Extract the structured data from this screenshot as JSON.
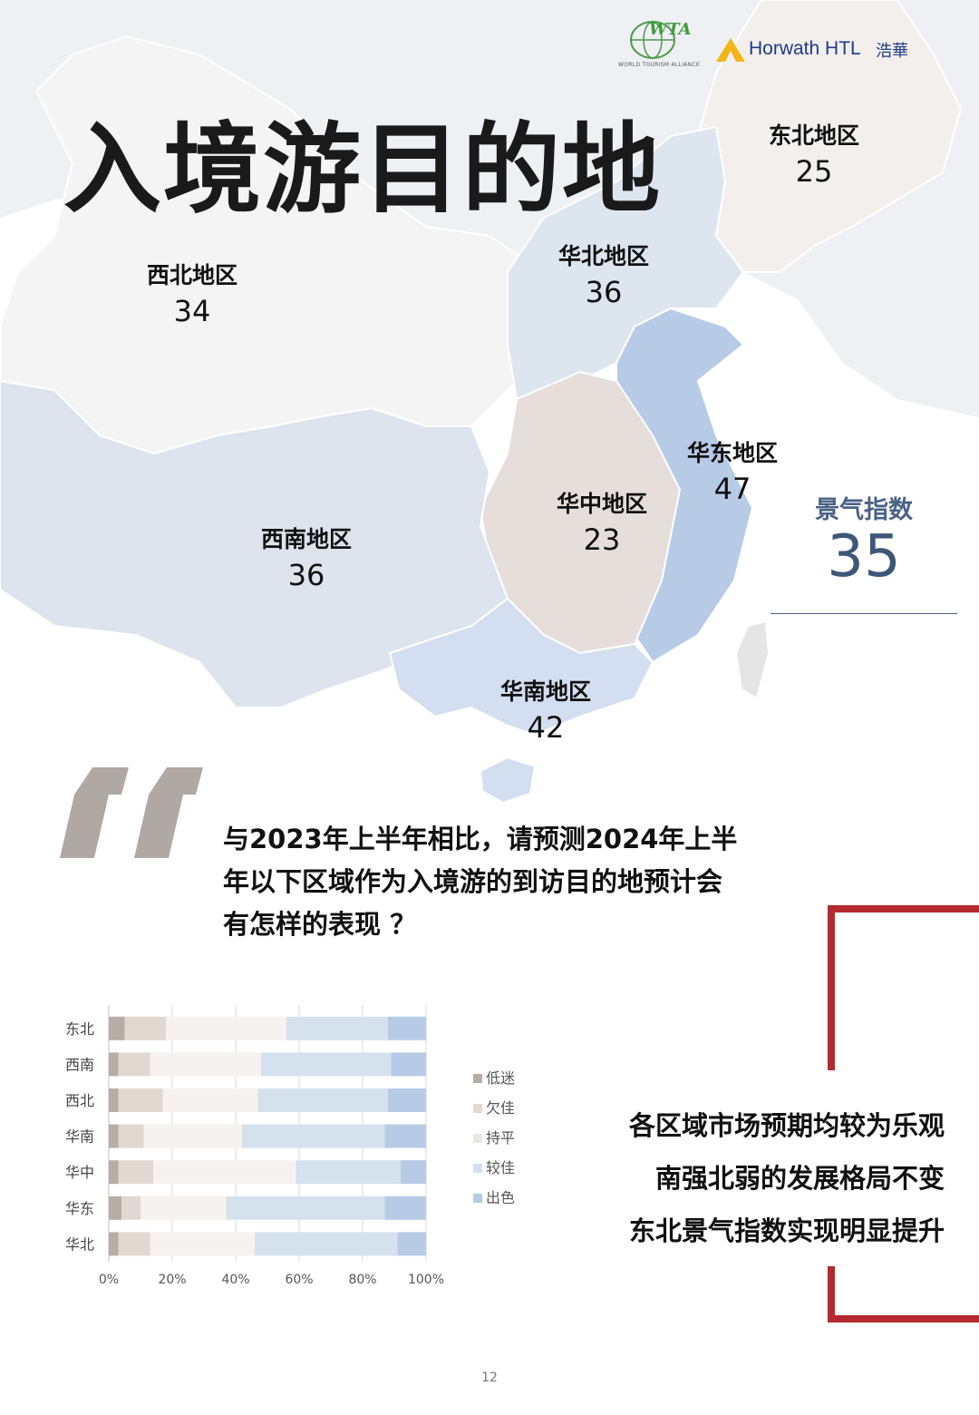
{
  "header": {
    "title": "入境游目的地",
    "logo_wta": "WTA",
    "logo_wta_sub": "WORLD TOURISM ALLIANCE",
    "logo_horwath": "Horwath HTL",
    "logo_horwath_cn": "浩華"
  },
  "regions": {
    "northeast": {
      "name": "东北地区",
      "value": "25"
    },
    "northwest": {
      "name": "西北地区",
      "value": "34"
    },
    "north": {
      "name": "华北地区",
      "value": "36"
    },
    "east": {
      "name": "华东地区",
      "value": "47"
    },
    "central": {
      "name": "华中地区",
      "value": "23"
    },
    "southwest": {
      "name": "西南地区",
      "value": "36"
    },
    "south": {
      "name": "华南地区",
      "value": "42"
    }
  },
  "index": {
    "label": "景气指数",
    "value": "35"
  },
  "question": {
    "line1": "与2023年上半年相比，请预测2024年上半",
    "line2": "年以下区域作为入境游的到访目的地预计会",
    "line3": "有怎样的表现 ？"
  },
  "conclusion": {
    "line1": "各区域市场预期均较为乐观",
    "line2": "南强北弱的发展格局不变",
    "line3": "东北景气指数实现明显提升"
  },
  "chart_data": {
    "type": "bar",
    "orientation": "horizontal",
    "stacked": "percent",
    "categories": [
      "东北",
      "西南",
      "西北",
      "华南",
      "华中",
      "华东",
      "华北"
    ],
    "series": [
      {
        "name": "低迷",
        "color": "#b7ada6",
        "values": [
          5,
          3,
          3,
          3,
          3,
          4,
          3
        ]
      },
      {
        "name": "欠佳",
        "color": "#e2d8d2",
        "values": [
          13,
          10,
          14,
          8,
          11,
          6,
          10
        ]
      },
      {
        "name": "持平",
        "color": "#f5f2f0",
        "values": [
          38,
          35,
          30,
          31,
          45,
          27,
          33
        ]
      },
      {
        "name": "较佳",
        "color": "#d6e1ee",
        "values": [
          32,
          41,
          41,
          45,
          33,
          50,
          45
        ]
      },
      {
        "name": "出色",
        "color": "#b8cbe6",
        "values": [
          12,
          11,
          12,
          13,
          8,
          13,
          9
        ]
      }
    ],
    "xticks": [
      "0%",
      "20%",
      "40%",
      "60%",
      "80%",
      "100%"
    ],
    "xlim": [
      0,
      100
    ],
    "legend": "right",
    "grid": true
  },
  "footer": {
    "page": "12"
  }
}
